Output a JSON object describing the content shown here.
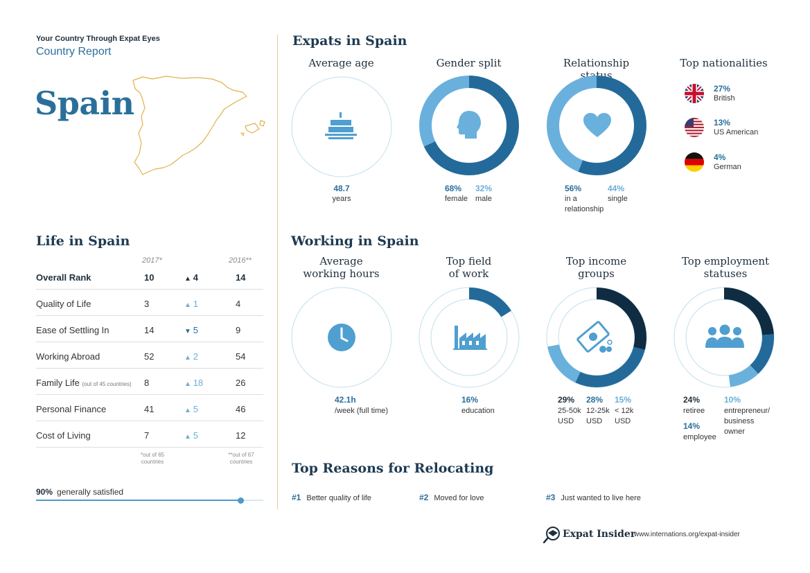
{
  "header": {
    "tagline": "Your Country Through Expat Eyes",
    "report": "Country Report",
    "country": "Spain"
  },
  "life": {
    "title": "Life in Spain",
    "col_2017": "2017*",
    "col_2016": "2016**",
    "rows": [
      {
        "label": "Overall Rank",
        "note": "",
        "y2017": "10",
        "change": "4",
        "dir": "up",
        "y2016": "14"
      },
      {
        "label": "Quality of Life",
        "note": "",
        "y2017": "3",
        "change": "1",
        "dir": "up",
        "y2016": "4"
      },
      {
        "label": "Ease of Settling In",
        "note": "",
        "y2017": "14",
        "change": "5",
        "dir": "down",
        "y2016": "9"
      },
      {
        "label": "Working Abroad",
        "note": "",
        "y2017": "52",
        "change": "2",
        "dir": "up",
        "y2016": "54"
      },
      {
        "label": "Family Life",
        "note": "(out of 45 countries)",
        "y2017": "8",
        "change": "18",
        "dir": "up",
        "y2016": "26"
      },
      {
        "label": "Personal Finance",
        "note": "",
        "y2017": "41",
        "change": "5",
        "dir": "up",
        "y2016": "46"
      },
      {
        "label": "Cost of Living",
        "note": "",
        "y2017": "7",
        "change": "5",
        "dir": "up",
        "y2016": "12"
      }
    ],
    "foot_2017_a": "*out of 65",
    "foot_2017_b": "countries",
    "foot_2016_a": "**out of 67",
    "foot_2016_b": "countries",
    "satisfied_pct": "90%",
    "satisfied_label": "generally satisfied",
    "satisfied_value": 0.9
  },
  "expats": {
    "title": "Expats in Spain",
    "avg_age": {
      "heading": "Average age",
      "value": "48.7",
      "unit": "years"
    },
    "gender": {
      "heading": "Gender split",
      "female_pct": "68%",
      "female_lbl": "female",
      "male_pct": "32%",
      "male_lbl": "male",
      "female_value": 68
    },
    "relationship": {
      "heading": "Relationship status",
      "rel_pct": "56%",
      "rel_lbl_1": "in a",
      "rel_lbl_2": "relationship",
      "single_pct": "44%",
      "single_lbl": "single",
      "rel_value": 56
    },
    "nationalities": {
      "heading": "Top nationalities",
      "items": [
        {
          "pct": "27%",
          "name": "British"
        },
        {
          "pct": "13%",
          "name": "US American"
        },
        {
          "pct": "4%",
          "name": "German"
        }
      ]
    }
  },
  "working": {
    "title": "Working in Spain",
    "hours": {
      "heading_1": "Average",
      "heading_2": "working hours",
      "value": "42.1h",
      "unit": "/week (full time)"
    },
    "field": {
      "heading_1": "Top field",
      "heading_2": "of work",
      "pct": "16%",
      "label": "education",
      "value": 16
    },
    "income": {
      "heading_1": "Top income",
      "heading_2": "groups",
      "groups": [
        {
          "pct": "29%",
          "l1": "25-50k",
          "l2": "USD",
          "value": 29
        },
        {
          "pct": "28%",
          "l1": "12-25k",
          "l2": "USD",
          "value": 28
        },
        {
          "pct": "15%",
          "l1": "< 12k",
          "l2": "USD",
          "value": 15
        }
      ]
    },
    "employment": {
      "heading_1": "Top employment",
      "heading_2": "statuses",
      "retiree_pct": "24%",
      "retiree_lbl": "retiree",
      "employee_pct": "14%",
      "employee_lbl": "employee",
      "entre_pct": "10%",
      "entre_l1": "entrepreneur/",
      "entre_l2": "business",
      "entre_l3": "owner",
      "values": [
        24,
        14,
        10
      ]
    }
  },
  "reasons": {
    "title": "Top Reasons for Relocating",
    "items": [
      {
        "num": "#1",
        "text": "Better quality of life"
      },
      {
        "num": "#2",
        "text": "Moved for love"
      },
      {
        "num": "#3",
        "text": "Just wanted to live here"
      }
    ]
  },
  "footer": {
    "brand": "Expat Insider",
    "url": "www.internations.org/expat-insider"
  },
  "colors": {
    "dark_navy": "#0f2c42",
    "mid_blue": "#236a9a",
    "light_blue": "#6ab0dc",
    "ring": "#bfe0ea",
    "accent": "#e8c598"
  }
}
